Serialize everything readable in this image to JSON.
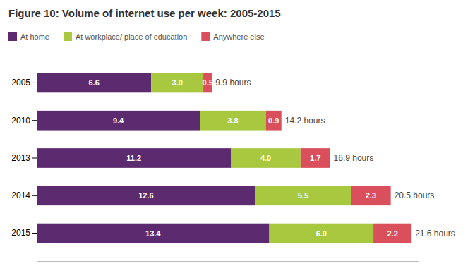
{
  "chart_data": {
    "type": "bar",
    "orientation": "horizontal",
    "stacked": true,
    "title": "Figure 10: Volume of internet use per week: 2005-2015",
    "categories": [
      "2005",
      "2010",
      "2013",
      "2014",
      "2015"
    ],
    "series": [
      {
        "name": "At home",
        "color": "#5C2A6E",
        "values": [
          6.6,
          9.4,
          11.2,
          12.6,
          13.4
        ]
      },
      {
        "name": "At workplace/ place of education",
        "color": "#A8C840",
        "values": [
          3.0,
          3.8,
          4.0,
          5.5,
          6.0
        ],
        "value_labels": [
          "3.0",
          "3.8",
          "4.0",
          "5.5",
          "6.0"
        ]
      },
      {
        "name": "Anywhere else",
        "color": "#D94F5C",
        "values": [
          0.5,
          0.9,
          1.7,
          2.3,
          2.2
        ]
      }
    ],
    "total_labels": [
      "9.9 hours",
      "14.2 hours",
      "16.9 hours",
      "20.5 hours",
      "21.6 hours"
    ],
    "xlim": [
      0,
      22
    ],
    "data_labels": true,
    "tick_labels": "y",
    "legend": "top",
    "grid": false
  }
}
